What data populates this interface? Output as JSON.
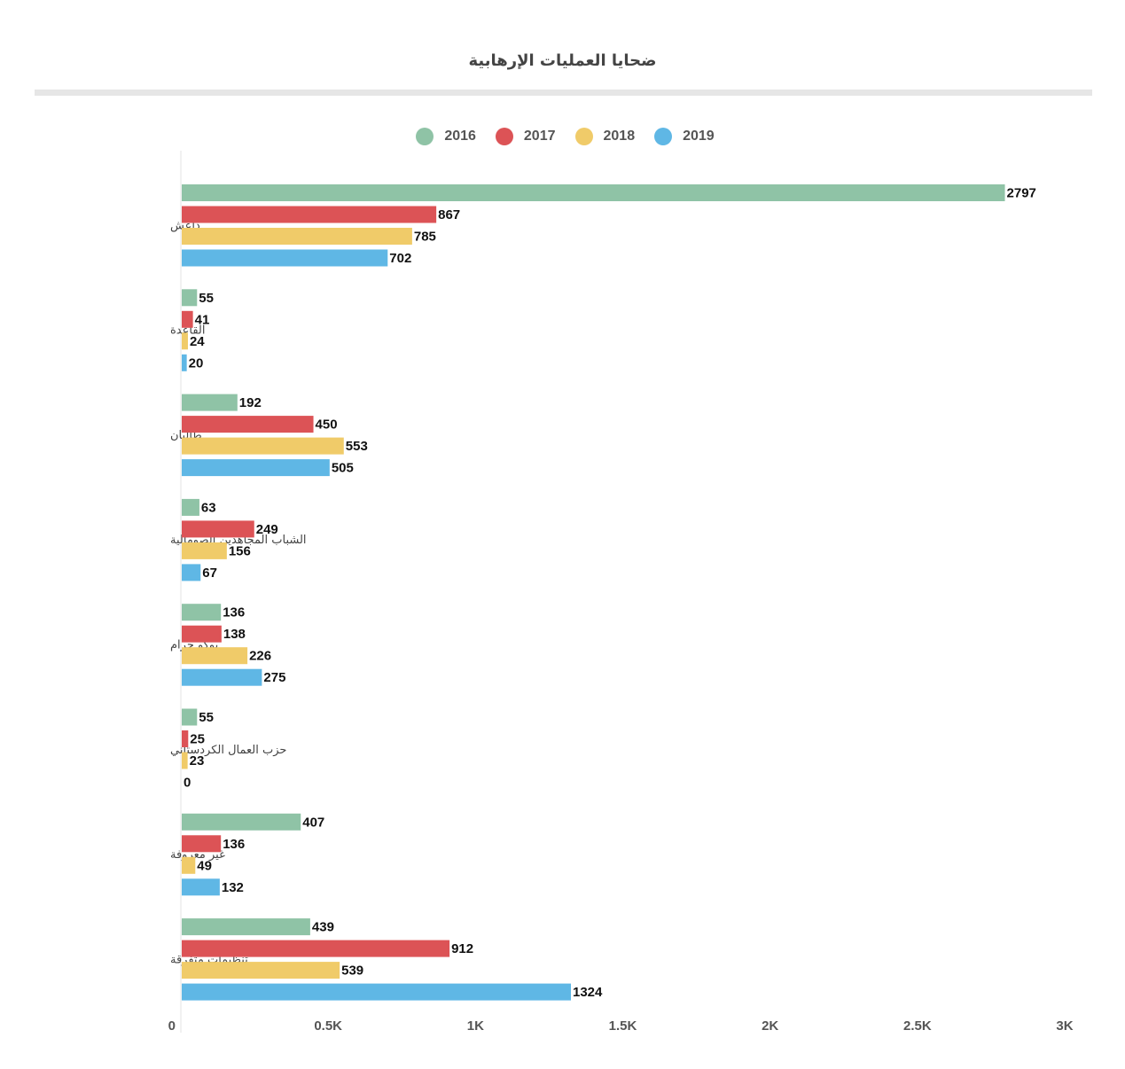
{
  "chart_data": {
    "type": "bar",
    "orientation": "horizontal",
    "title": "ضحايا العمليات الإرهابية",
    "categories": [
      "داعش",
      "القاعدة",
      "طالبان",
      "الشباب المجاهدين الصومالية",
      "بوكو حرام",
      "حزب العمال الكردستاني",
      "غير معروفة",
      "تنظيمات متفرقة"
    ],
    "series": [
      {
        "name": "2016",
        "color": "#8fc3a6",
        "values": [
          2797,
          55,
          192,
          63,
          136,
          55,
          407,
          439
        ]
      },
      {
        "name": "2017",
        "color": "#dc5356",
        "values": [
          867,
          41,
          450,
          249,
          138,
          25,
          136,
          912
        ]
      },
      {
        "name": "2018",
        "color": "#f0cb69",
        "values": [
          785,
          24,
          553,
          156,
          226,
          23,
          49,
          539
        ]
      },
      {
        "name": "2019",
        "color": "#5fb7e5",
        "values": [
          702,
          20,
          505,
          67,
          275,
          0,
          132,
          1324
        ]
      }
    ],
    "xlim": [
      0,
      3000
    ],
    "xticks": [
      0,
      500,
      1000,
      1500,
      2000,
      2500,
      3000
    ],
    "xtick_labels": [
      "0",
      "0.5K",
      "1K",
      "1.5K",
      "2K",
      "2.5K",
      "3K"
    ],
    "legend_position": "top",
    "grid": false
  }
}
